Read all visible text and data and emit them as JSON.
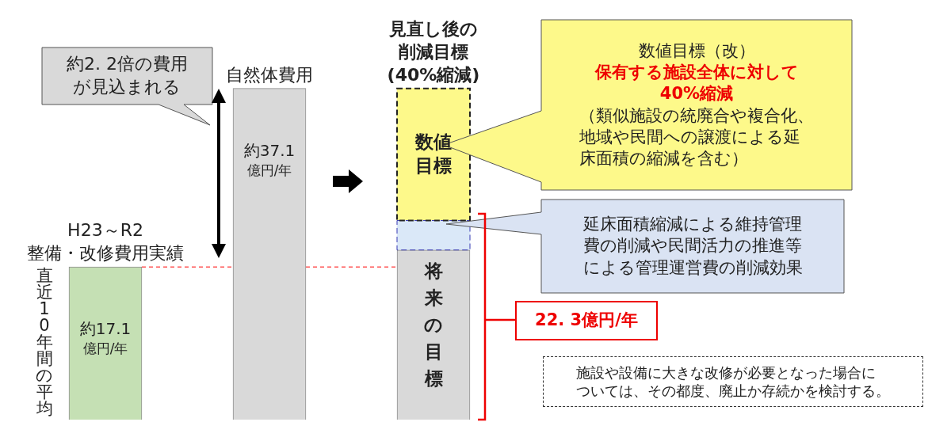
{
  "chart_data": {
    "type": "bar",
    "stacked": true,
    "categories": [
      "H23～R2\n整備・改修費用実績",
      "自然体費用",
      "見直し後の削減目標\n(40%縮減)"
    ],
    "series": [
      {
        "colors": [
          "#c5e0b4",
          "#d9d9d9",
          "#d9d9d9"
        ],
        "values": [
          17.1,
          37.1,
          19.0
        ],
        "value_labels": [
          "約17.1\n億円/年",
          "約37.1\n億円/年",
          null
        ]
      },
      {
        "color": "#dae8f8",
        "values": [
          null,
          null,
          3.3
        ],
        "line_style": "dashed"
      },
      {
        "color": "#fdf98a",
        "values": [
          null,
          null,
          14.8
        ],
        "line_style": "dashed"
      }
    ],
    "ylim": [
      0,
      47
    ],
    "tick_labels": false,
    "legend": false,
    "ref_lines": [
      {
        "axis": "y",
        "value": 17.1,
        "color": "#ff0000",
        "line_style": "dashed"
      }
    ],
    "annotations": [
      "約2. 2倍の費用が見込まれる",
      "数値目標（改）",
      "保有する施設全体に対して\n40%縮減",
      "（類似施設の統廃合や複合化、地域や民間への譲渡による延床面積の縮減を含む）",
      "延床面積縮減による維持管理費の削減や民間活力の推進等による管理運営費の削減効果",
      "22. 3億円/年",
      "施設や設備に大きな改修が必要となった場合については、その都度、廃止か存続かを検討する。",
      "直近10年間の平均",
      "数値目標",
      "将来の目標"
    ]
  }
}
